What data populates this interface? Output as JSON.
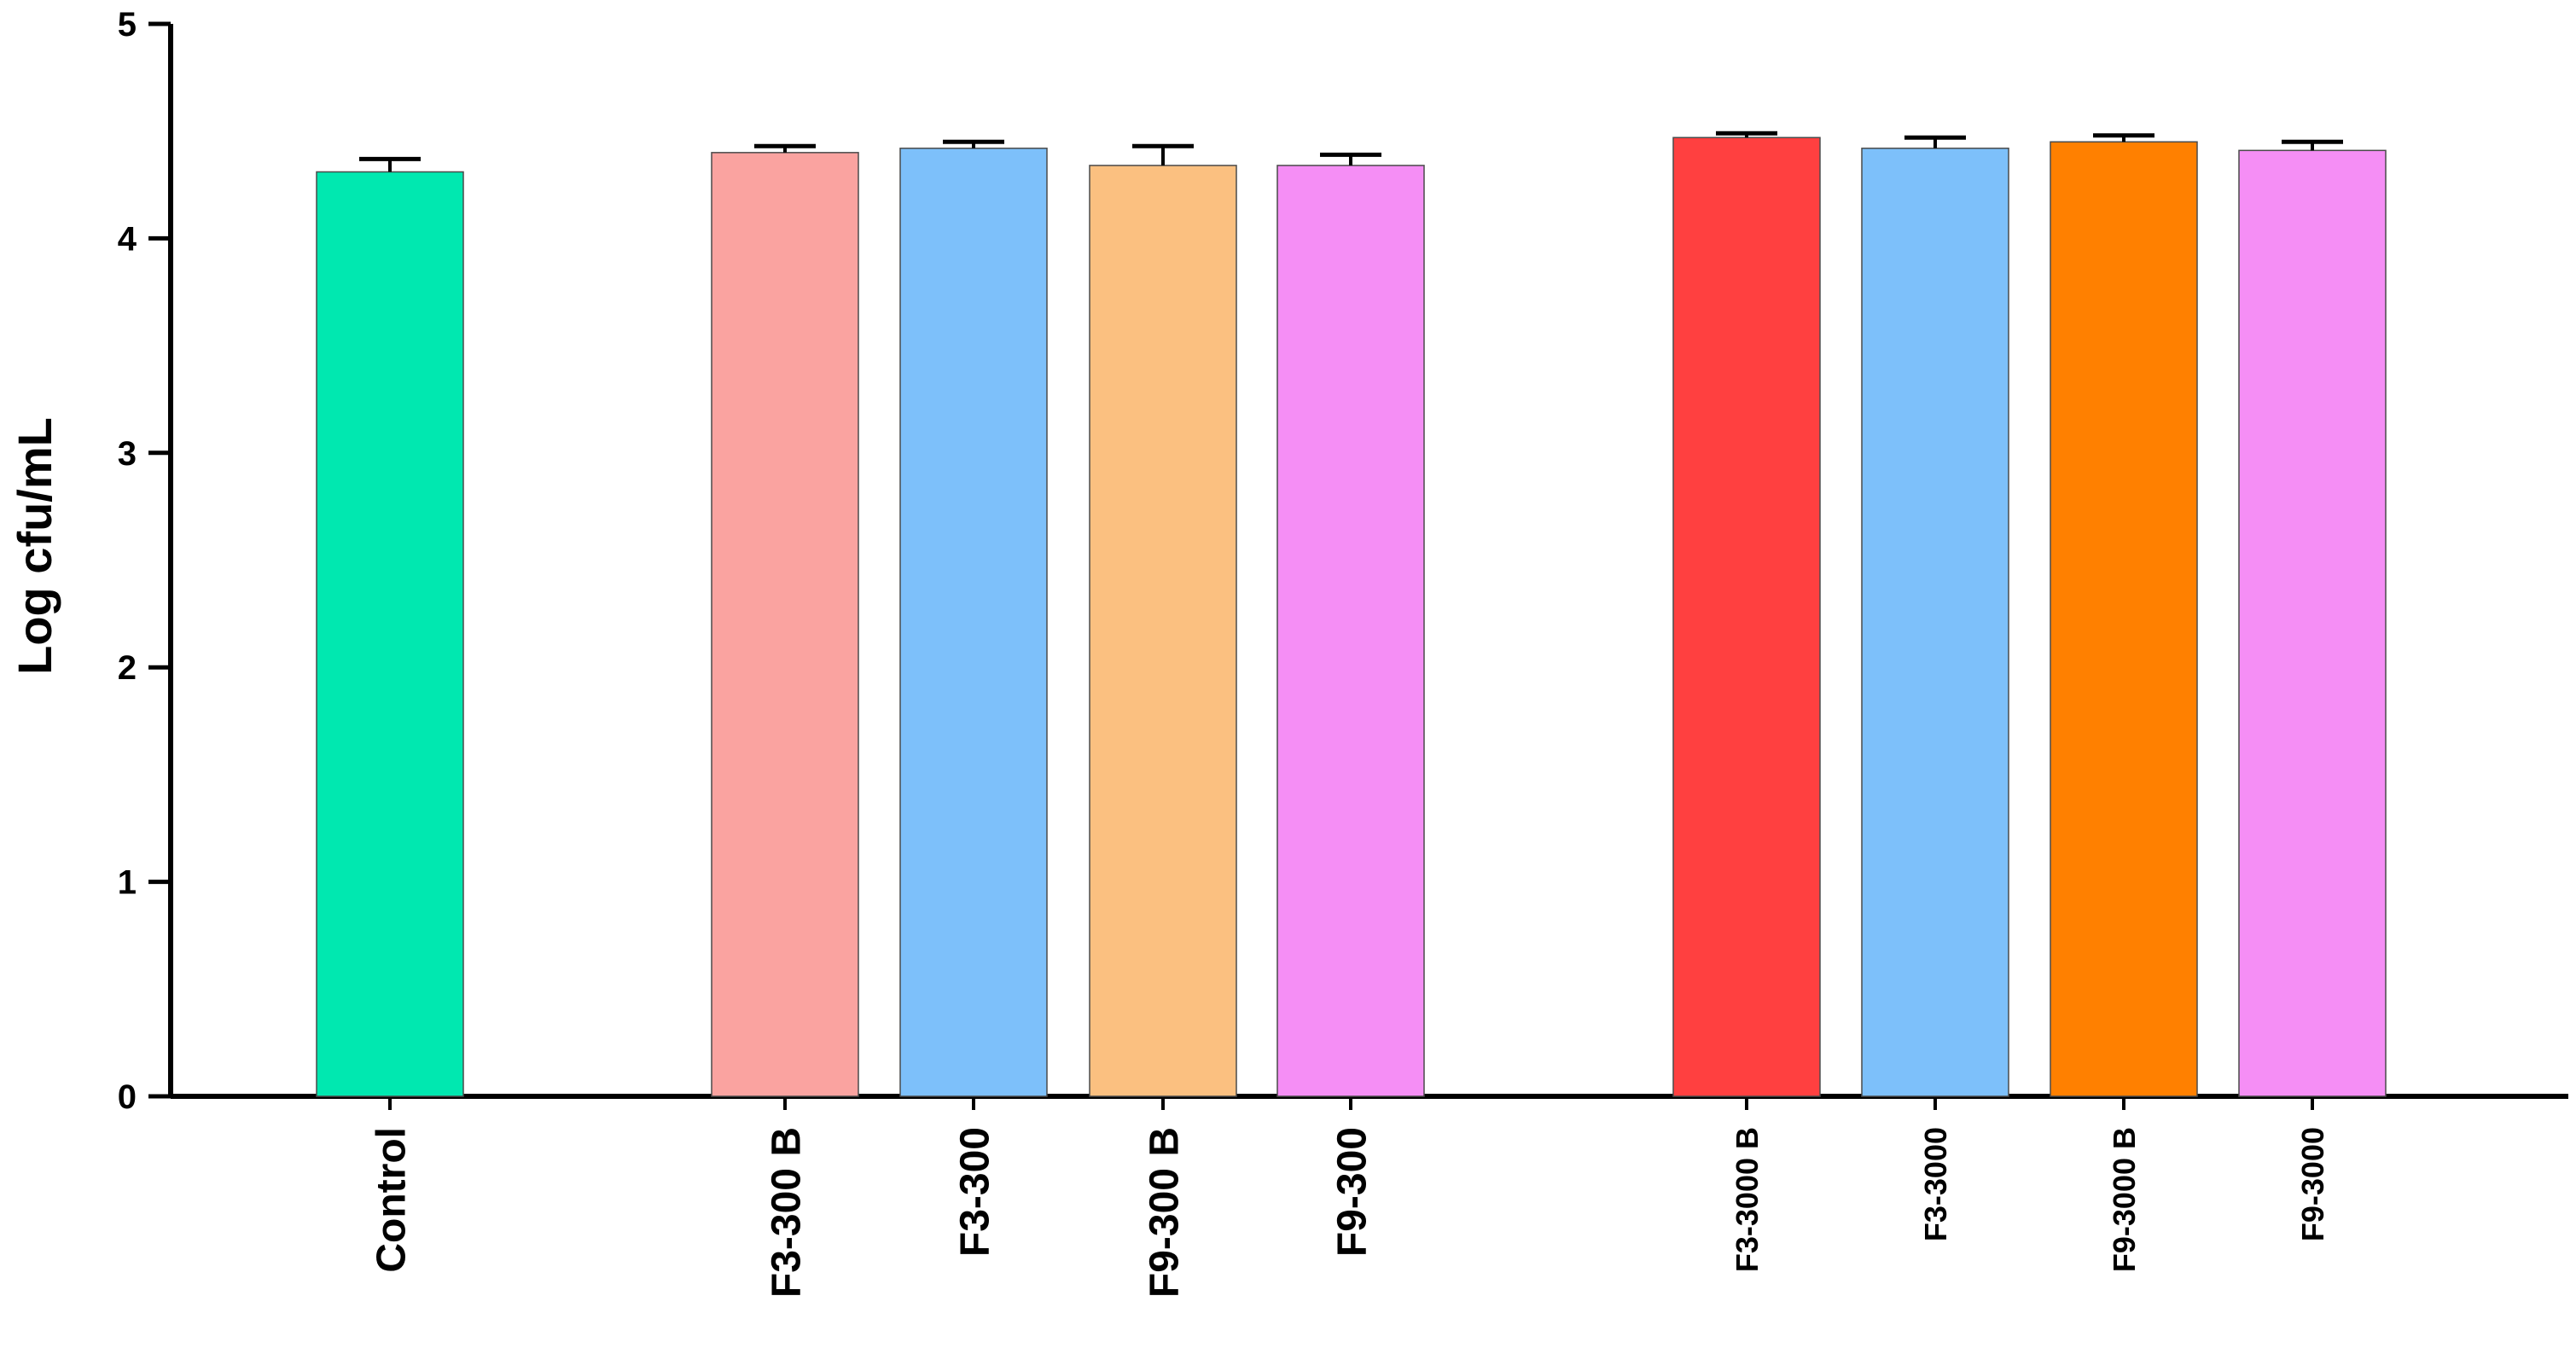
{
  "chart_data": {
    "type": "bar",
    "title": "",
    "xlabel": "",
    "ylabel": "Log cfu/mL",
    "ylim": [
      0,
      5
    ],
    "yticks": [
      "0",
      "1",
      "2",
      "3",
      "4",
      "5"
    ],
    "grid": false,
    "legend": "none",
    "categories": [
      "Control",
      "F3-300 B",
      "F3-300",
      "F9-300 B",
      "F9-300",
      "F3-3000 B",
      "F3-3000",
      "F9-3000 B",
      "F9-3000"
    ],
    "values": [
      4.31,
      4.4,
      4.42,
      4.34,
      4.34,
      4.47,
      4.42,
      4.45,
      4.41
    ],
    "errors": [
      0.06,
      0.03,
      0.03,
      0.09,
      0.05,
      0.02,
      0.05,
      0.03,
      0.04
    ],
    "colors": [
      "#00E8B0",
      "#FAA3A0",
      "#7DC0FA",
      "#FBC080",
      "#F58EF5",
      "#FF4040",
      "#7DC0FA",
      "#FF8000",
      "#F58EF5"
    ],
    "groups": [
      [
        0
      ],
      [
        1,
        2,
        3,
        4
      ],
      [
        5,
        6,
        7,
        8
      ]
    ]
  }
}
